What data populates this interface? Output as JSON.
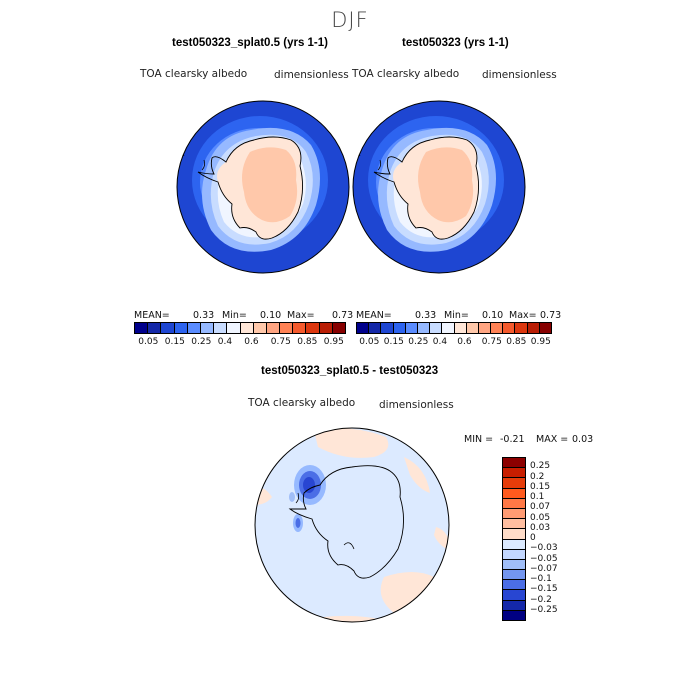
{
  "season": "DJF",
  "panels": [
    {
      "title": "test050323_splat0.5 (yrs 1-1)",
      "variable": "TOA clearsky albedo",
      "units": "dimensionless",
      "stats": {
        "mean_label": "MEAN=",
        "mean": "0.33",
        "min_label": "Min=",
        "min": "0.10",
        "max_label": "Max=",
        "max": "0.73"
      }
    },
    {
      "title": "test050323 (yrs 1-1)",
      "variable": "TOA clearsky albedo",
      "units": "dimensionless",
      "stats": {
        "mean_label": "MEAN=",
        "mean": "0.33",
        "min_label": "Min=",
        "min": "0.10",
        "max_label": "Max=",
        "max": "0.73"
      }
    }
  ],
  "abs_colorbar": {
    "ticks": [
      "0.05",
      "0.15",
      "0.25",
      "0.4",
      "0.6",
      "0.75",
      "0.85",
      "0.95"
    ],
    "colors": [
      "#00008c",
      "#1428a8",
      "#1e46d2",
      "#2d64f0",
      "#5a8cff",
      "#96b9ff",
      "#c8dcff",
      "#f0f5ff",
      "#ffe6d7",
      "#ffc8aa",
      "#ffa582",
      "#ff8255",
      "#f55a2d",
      "#dc370f",
      "#b91e05",
      "#870000"
    ]
  },
  "diff_panel": {
    "title": "test050323_splat0.5 - test050323",
    "variable": "TOA clearsky albedo",
    "units": "dimensionless",
    "stats": {
      "min_label": "MIN =",
      "min": "-0.21",
      "max_label": "MAX =",
      "max": "0.03"
    }
  },
  "diff_colorbar": {
    "ticks": [
      "0.25",
      "0.2",
      "0.15",
      "0.1",
      "0.07",
      "0.05",
      "0.03",
      "0",
      "−0.03",
      "−0.05",
      "−0.07",
      "−0.1",
      "−0.15",
      "−0.2",
      "−0.25"
    ],
    "colors": [
      "#8c0000",
      "#c81e00",
      "#e63c0a",
      "#ff5a1e",
      "#ff7846",
      "#ff9b73",
      "#ffbea0",
      "#ffdcc8",
      "#dceaff",
      "#c3d7ff",
      "#a0bef8",
      "#7396f0",
      "#4b6ee6",
      "#2846d2",
      "#1428aa",
      "#000082"
    ]
  }
}
